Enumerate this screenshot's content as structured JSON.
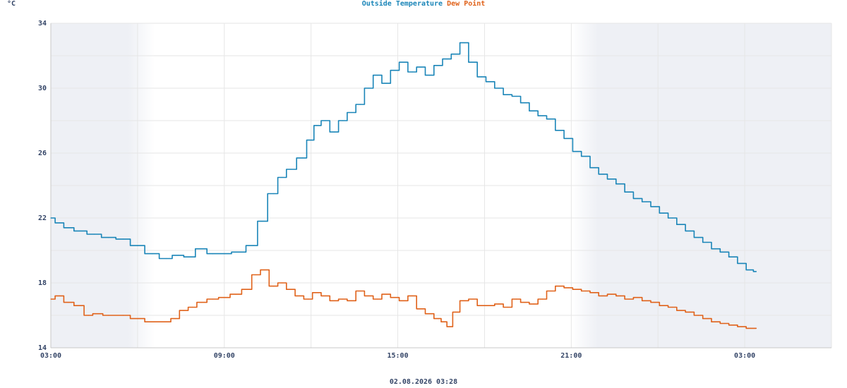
{
  "unit_label": "°C",
  "timestamp": "02.08.2026 03:28",
  "colors": {
    "outside_temperature": "#1a85b8",
    "dew_point": "#e0621a",
    "night_shade": "#eef0f5",
    "grid": "#e6e6e6",
    "axis_text": "#334466"
  },
  "chart_data": {
    "type": "line",
    "xlabel": "",
    "ylabel": "°C",
    "ylim": [
      14,
      34
    ],
    "xlim_hours": [
      3,
      30
    ],
    "y_ticks": [
      "14",
      "18",
      "22",
      "26",
      "30",
      "34"
    ],
    "x_ticks": [
      {
        "hour": 3,
        "label": "03:00"
      },
      {
        "hour": 9,
        "label": "09:00"
      },
      {
        "hour": 15,
        "label": "15:00"
      },
      {
        "hour": 21,
        "label": "21:00"
      },
      {
        "hour": 27,
        "label": "03:00"
      }
    ],
    "grid": true,
    "legend_position": "top-center",
    "night_periods": [
      [
        3,
        6.6
      ],
      [
        21,
        30
      ]
    ],
    "series": [
      {
        "name": "Outside Temperature",
        "color": "#1a85b8",
        "x": [
          3,
          3.3,
          3.6,
          4,
          4.5,
          5,
          5.5,
          6,
          6.5,
          7,
          7.4,
          7.8,
          8.2,
          8.6,
          9,
          9.5,
          10,
          10.3,
          10.7,
          11,
          11.3,
          11.7,
          12,
          12.2,
          12.5,
          12.8,
          13.1,
          13.4,
          13.7,
          14,
          14.3,
          14.6,
          14.9,
          15.2,
          15.5,
          15.8,
          16.1,
          16.4,
          16.7,
          17,
          17.3,
          17.6,
          17.9,
          18.2,
          18.5,
          18.8,
          19.1,
          19.4,
          19.7,
          20,
          20.3,
          20.6,
          20.9,
          21.2,
          21.5,
          21.8,
          22.1,
          22.4,
          22.7,
          23,
          23.3,
          23.6,
          23.9,
          24.2,
          24.5,
          24.8,
          25.1,
          25.4,
          25.7,
          26,
          26.3,
          26.6,
          26.9,
          27.2,
          27.4
        ],
        "values": [
          22.0,
          21.7,
          21.4,
          21.2,
          21.0,
          20.8,
          20.7,
          20.3,
          19.8,
          19.5,
          19.7,
          19.6,
          20.1,
          19.8,
          19.8,
          19.9,
          20.3,
          21.8,
          23.5,
          24.5,
          25.0,
          25.7,
          26.8,
          27.7,
          28.0,
          27.3,
          28.0,
          28.5,
          29.0,
          30.0,
          30.8,
          30.3,
          31.1,
          31.6,
          31.0,
          31.3,
          30.8,
          31.4,
          31.8,
          32.1,
          32.8,
          31.6,
          30.7,
          30.4,
          30.0,
          29.6,
          29.5,
          29.1,
          28.6,
          28.3,
          28.1,
          27.4,
          26.9,
          26.1,
          25.8,
          25.1,
          24.7,
          24.4,
          24.1,
          23.6,
          23.2,
          23.0,
          22.7,
          22.3,
          22.0,
          21.6,
          21.2,
          20.8,
          20.5,
          20.1,
          19.9,
          19.6,
          19.2,
          18.8,
          18.7
        ]
      },
      {
        "name": "Dew Point",
        "color": "#e0621a",
        "x": [
          3,
          3.3,
          3.6,
          4,
          4.3,
          4.6,
          5,
          5.5,
          6,
          6.5,
          7,
          7.3,
          7.6,
          7.9,
          8.2,
          8.6,
          9,
          9.4,
          9.8,
          10.1,
          10.4,
          10.7,
          11,
          11.3,
          11.6,
          11.9,
          12.2,
          12.5,
          12.8,
          13.1,
          13.4,
          13.7,
          14,
          14.3,
          14.6,
          14.9,
          15.2,
          15.5,
          15.8,
          16.1,
          16.4,
          16.6,
          16.8,
          17,
          17.3,
          17.6,
          17.9,
          18.2,
          18.5,
          18.8,
          19.1,
          19.4,
          19.7,
          20,
          20.3,
          20.6,
          20.9,
          21.2,
          21.5,
          21.8,
          22.1,
          22.4,
          22.7,
          23,
          23.3,
          23.6,
          23.9,
          24.2,
          24.5,
          24.8,
          25.1,
          25.4,
          25.7,
          26,
          26.3,
          26.6,
          26.9,
          27.2,
          27.4
        ],
        "values": [
          17.0,
          17.2,
          16.8,
          16.6,
          16.0,
          16.1,
          16.0,
          16.0,
          15.8,
          15.6,
          15.6,
          15.8,
          16.3,
          16.5,
          16.8,
          17.0,
          17.1,
          17.3,
          17.6,
          18.5,
          18.8,
          17.8,
          18.0,
          17.6,
          17.2,
          17.0,
          17.4,
          17.2,
          16.9,
          17.0,
          16.9,
          17.5,
          17.2,
          17.0,
          17.3,
          17.1,
          16.9,
          17.2,
          16.4,
          16.1,
          15.8,
          15.6,
          15.3,
          16.2,
          16.9,
          17.0,
          16.6,
          16.6,
          16.7,
          16.5,
          17.0,
          16.8,
          16.7,
          17.0,
          17.5,
          17.8,
          17.7,
          17.6,
          17.5,
          17.4,
          17.2,
          17.3,
          17.2,
          17.0,
          17.1,
          16.9,
          16.8,
          16.6,
          16.5,
          16.3,
          16.2,
          16.0,
          15.8,
          15.6,
          15.5,
          15.4,
          15.3,
          15.2,
          15.2
        ]
      }
    ]
  }
}
